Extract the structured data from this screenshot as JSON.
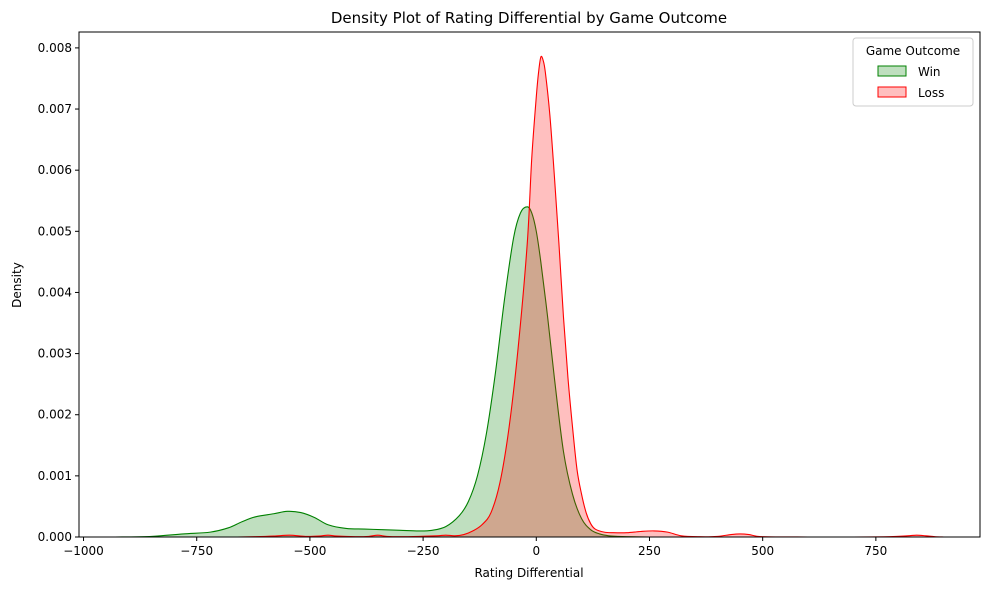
{
  "chart_data": {
    "type": "area",
    "title": "Density Plot of Rating Differential by Game Outcome",
    "xlabel": "Rating Differential",
    "ylabel": "Density",
    "xlim": [
      -1010,
      980
    ],
    "ylim": [
      0,
      0.00826
    ],
    "x_ticks": [
      -1000,
      -750,
      -500,
      -250,
      0,
      250,
      500,
      750
    ],
    "x_tick_labels": [
      "−1000",
      "−750",
      "−500",
      "−250",
      "0",
      "250",
      "500",
      "750"
    ],
    "y_ticks": [
      0,
      0.001,
      0.002,
      0.003,
      0.004,
      0.005,
      0.006,
      0.007,
      0.008
    ],
    "y_tick_labels": [
      "0.000",
      "0.001",
      "0.002",
      "0.003",
      "0.004",
      "0.005",
      "0.006",
      "0.007",
      "0.008"
    ],
    "legend": {
      "title": "Game Outcome",
      "placement": "top-right"
    },
    "series": [
      {
        "name": "Win",
        "line_color": "#008000",
        "fill_color": "#008000",
        "fill_opacity": 0.25,
        "x": [
          -930,
          -850,
          -780,
          -720,
          -680,
          -650,
          -620,
          -580,
          -550,
          -520,
          -490,
          -460,
          -420,
          -380,
          -340,
          -300,
          -260,
          -230,
          -200,
          -170,
          -150,
          -130,
          -110,
          -90,
          -70,
          -50,
          -35,
          -20,
          -10,
          0,
          10,
          25,
          40,
          60,
          80,
          100,
          120,
          140,
          160,
          180,
          200,
          250,
          300,
          400,
          500,
          700,
          900
        ],
        "values": [
          0.0,
          1e-05,
          5e-05,
          8e-05,
          0.00015,
          0.00025,
          0.00033,
          0.00038,
          0.00042,
          0.0004,
          0.00032,
          0.0002,
          0.00014,
          0.00013,
          0.00012,
          0.00011,
          0.0001,
          0.00011,
          0.00017,
          0.00035,
          0.00058,
          0.001,
          0.0017,
          0.0027,
          0.0039,
          0.0049,
          0.0053,
          0.0054,
          0.0053,
          0.005,
          0.0045,
          0.0036,
          0.0026,
          0.0014,
          0.0007,
          0.0003,
          0.00012,
          5e-05,
          2e-05,
          1e-05,
          5e-06,
          0.0,
          0.0,
          0.0,
          0.0,
          0.0,
          0.0
        ]
      },
      {
        "name": "Loss",
        "line_color": "#ff0000",
        "fill_color": "#ff0000",
        "fill_opacity": 0.25,
        "x": [
          -660,
          -620,
          -580,
          -545,
          -510,
          -480,
          -460,
          -440,
          -400,
          -370,
          -350,
          -330,
          -300,
          -260,
          -220,
          -200,
          -180,
          -160,
          -140,
          -120,
          -100,
          -80,
          -60,
          -40,
          -20,
          -10,
          0,
          5,
          10,
          15,
          20,
          30,
          40,
          50,
          60,
          70,
          80,
          90,
          100,
          110,
          120,
          130,
          150,
          170,
          200,
          230,
          260,
          290,
          320,
          360,
          400,
          430,
          450,
          470,
          500,
          600,
          700,
          780,
          820,
          840,
          860,
          880,
          900
        ],
        "values": [
          0.0,
          5e-06,
          1.5e-05,
          3e-05,
          1e-05,
          1.5e-05,
          3e-05,
          1.5e-05,
          5e-06,
          1e-05,
          3e-05,
          1e-05,
          5e-06,
          1e-05,
          2e-05,
          3e-05,
          2e-05,
          4e-05,
          0.0001,
          0.0002,
          0.0004,
          0.0009,
          0.0018,
          0.0031,
          0.0048,
          0.0062,
          0.0072,
          0.0076,
          0.00785,
          0.0078,
          0.0076,
          0.0069,
          0.0059,
          0.0048,
          0.0036,
          0.0026,
          0.0018,
          0.0011,
          0.0007,
          0.0004,
          0.00022,
          0.00013,
          8e-05,
          7e-05,
          7e-05,
          9e-05,
          0.0001,
          8e-05,
          2e-05,
          5e-06,
          1e-05,
          4e-05,
          5e-05,
          4e-05,
          5e-06,
          0.0,
          0.0,
          5e-06,
          2e-05,
          3e-05,
          2e-05,
          5e-06,
          0.0
        ]
      }
    ]
  }
}
